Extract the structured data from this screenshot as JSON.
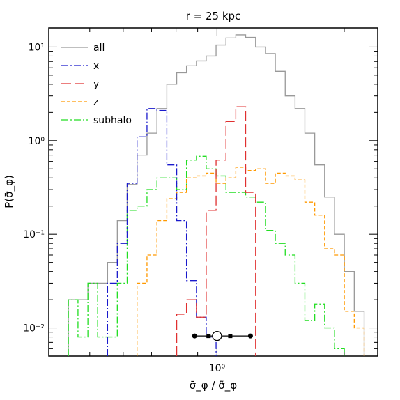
{
  "chart_data": {
    "type": "step-histogram",
    "title": "r = 25 kpc",
    "xlabel": "σ̄_φ / σ̃_φ",
    "ylabel": "P(σ̄_φ)",
    "x_scale": "log",
    "y_scale": "log",
    "xlim": [
      0.4,
      2.4
    ],
    "ylim": [
      0.005,
      16
    ],
    "x_ticks": [
      {
        "value": 1.0,
        "label": "10⁰"
      }
    ],
    "y_ticks": [
      {
        "value": 0.01,
        "label": "10⁻²"
      },
      {
        "value": 0.1,
        "label": "10⁻¹"
      },
      {
        "value": 1,
        "label": "10⁰"
      },
      {
        "value": 10,
        "label": "10¹"
      }
    ],
    "legend": {
      "position": "top-left"
    },
    "bin_edges": [
      0.445,
      0.469,
      0.495,
      0.522,
      0.551,
      0.581,
      0.613,
      0.647,
      0.683,
      0.721,
      0.761,
      0.803,
      0.847,
      0.894,
      0.943,
      0.995,
      1.05,
      1.108,
      1.169,
      1.234,
      1.302,
      1.374,
      1.45,
      1.53,
      1.614,
      1.703,
      1.797,
      1.896,
      2.001,
      2.112,
      2.229
    ],
    "series": [
      {
        "name": "all",
        "color": "#999999",
        "dash": "solid",
        "values": [
          0.02,
          0.02,
          0.03,
          0.03,
          0.05,
          0.14,
          0.34,
          0.7,
          1.2,
          2.2,
          4.0,
          5.3,
          6.3,
          7.1,
          8.0,
          10.5,
          12.5,
          13.5,
          12.7,
          10.0,
          8.5,
          5.5,
          3.0,
          2.2,
          1.2,
          0.55,
          0.25,
          0.1,
          0.04,
          0.015
        ]
      },
      {
        "name": "x",
        "color": "#1a1acc",
        "dash": "dashdot",
        "values": [
          null,
          null,
          null,
          null,
          0.03,
          0.08,
          0.35,
          1.1,
          2.2,
          2.1,
          0.55,
          0.14,
          0.032,
          0.013,
          0.008,
          null,
          null,
          null,
          null,
          null,
          null,
          null,
          null,
          null,
          null,
          null,
          null,
          null,
          null,
          null
        ]
      },
      {
        "name": "y",
        "color": "#e03030",
        "dash": "longdash",
        "values": [
          null,
          null,
          null,
          null,
          null,
          null,
          null,
          null,
          null,
          null,
          null,
          0.014,
          0.02,
          0.013,
          0.18,
          0.62,
          1.6,
          2.3,
          0.28,
          null,
          null,
          null,
          null,
          null,
          null,
          null,
          null,
          null,
          null,
          null
        ]
      },
      {
        "name": "z",
        "color": "#ff9900",
        "dash": "shortdash",
        "values": [
          null,
          null,
          null,
          null,
          null,
          null,
          null,
          0.03,
          0.06,
          0.14,
          0.24,
          0.28,
          0.4,
          0.42,
          0.45,
          0.35,
          0.4,
          0.52,
          0.48,
          0.5,
          0.35,
          0.45,
          0.42,
          0.38,
          0.22,
          0.16,
          0.07,
          0.06,
          0.015,
          0.01
        ]
      },
      {
        "name": "subhalo",
        "color": "#22dd22",
        "dash": "dashdot",
        "values": [
          0.02,
          0.008,
          0.03,
          0.008,
          0.008,
          0.03,
          0.18,
          0.2,
          0.3,
          0.4,
          0.4,
          0.3,
          0.62,
          0.68,
          0.5,
          0.42,
          0.28,
          0.28,
          0.25,
          0.22,
          0.11,
          0.08,
          0.06,
          0.03,
          0.012,
          0.018,
          0.01,
          0.006,
          null,
          null
        ]
      }
    ],
    "error_bar": {
      "center": 1.0,
      "x_low": 0.885,
      "x_high": 1.2,
      "y": 0.0082,
      "end_markers": [
        0.885,
        0.955,
        1.075,
        1.2
      ]
    }
  }
}
